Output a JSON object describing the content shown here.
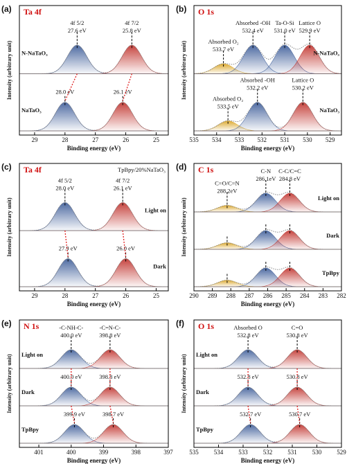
{
  "chart_data": [
    {
      "type": "xps",
      "panel": "(a)",
      "title": "Ta 4f",
      "xlabel": "Binding energy (eV)",
      "ylabel": "Intensity (arbitrary unit)",
      "xlim": [
        29.5,
        24.6
      ],
      "xticks": [
        29,
        28,
        27,
        26,
        25
      ],
      "name_side": "left",
      "link_color": "#e02020",
      "spectra": [
        {
          "name": "N-NaTaO₃",
          "peaks": [
            {
              "name": "4f 5/2",
              "value": 27.6,
              "label": "27.6 eV",
              "color": "#3b5b98"
            },
            {
              "name": "4f 7/2",
              "value": 25.8,
              "label": "25.8 eV",
              "color": "#c0302a"
            }
          ]
        },
        {
          "name": "NaTaO₃",
          "peaks": [
            {
              "value": 28.0,
              "label": "28.0 eV",
              "color": "#3b5b98"
            },
            {
              "value": 26.1,
              "label": "26.1 eV",
              "color": "#c0302a"
            }
          ]
        }
      ]
    },
    {
      "type": "xps",
      "panel": "(b)",
      "title": "O 1s",
      "xlabel": "Binding energy (eV)",
      "ylabel": "Intensity (arbitrary unit)",
      "xlim": [
        535,
        528.5
      ],
      "xticks": [
        535,
        534,
        533,
        532,
        531,
        530,
        529
      ],
      "name_side": "right",
      "spectra": [
        {
          "name": "N-NaTaO₃",
          "peaks": [
            {
              "name": "Absorbed O₂",
              "value": 533.7,
              "label": "533.7 eV",
              "color": "#d9a21f"
            },
            {
              "name": "Absorbed -OH",
              "value": 532.4,
              "label": "532.4 eV",
              "color": "#3b5b98"
            },
            {
              "name": "Ta-O-Si",
              "value": 531.0,
              "label": "531.0 eV",
              "color": "#3b5b98"
            },
            {
              "name": "Lattice O",
              "value": 529.9,
              "label": "529.9 eV",
              "color": "#c0302a"
            }
          ]
        },
        {
          "name": "NaTaO₃",
          "peaks": [
            {
              "name": "Absorbed O₂",
              "value": 533.5,
              "label": "533.5 eV",
              "color": "#d9a21f"
            },
            {
              "name": "Absorbed -OH",
              "value": 532.2,
              "label": "532.2 eV",
              "color": "#3b5b98"
            },
            {
              "name": "Lattice O",
              "value": 530.2,
              "label": "530.2 eV",
              "color": "#c0302a"
            }
          ]
        }
      ]
    },
    {
      "type": "xps",
      "panel": "(c)",
      "title": "Ta 4f",
      "subtitle": "TpBpy/20%NaTaO₃",
      "xlabel": "Binding energy (eV)",
      "ylabel": "Intensity (arbitrary unit)",
      "xlim": [
        29.5,
        24.6
      ],
      "xticks": [
        29,
        28,
        27,
        26,
        25
      ],
      "name_side": "right",
      "link_color": "#e02020",
      "spectra": [
        {
          "name": "Light on",
          "peaks": [
            {
              "name": "4f 5/2",
              "value": 28.0,
              "label": "28.0 eV",
              "color": "#3b5b98"
            },
            {
              "name": "4f 7/2",
              "value": 26.1,
              "label": "26.1 eV",
              "color": "#c0302a"
            }
          ]
        },
        {
          "name": "Dark",
          "peaks": [
            {
              "value": 27.9,
              "label": "27.9 eV",
              "color": "#3b5b98"
            },
            {
              "value": 26.0,
              "label": "26.0 eV",
              "color": "#c0302a"
            }
          ]
        }
      ]
    },
    {
      "type": "xps",
      "panel": "(d)",
      "title": "C 1s",
      "xlabel": "Binding energy (eV)",
      "ylabel": "Intensity (arbitrary unit)",
      "xlim": [
        290,
        282
      ],
      "xticks": [
        290,
        289,
        288,
        287,
        286,
        285,
        284,
        283,
        282
      ],
      "name_side": "right",
      "spectra": [
        {
          "name": "Light on",
          "peaks": [
            {
              "name": "C=O/C=N",
              "value": 288.2,
              "label": "288.2eV",
              "color": "#d9a21f"
            },
            {
              "name": "C-N",
              "value": 286.1,
              "label": "286.1eV",
              "color": "#3b5b98"
            },
            {
              "name": "C-C/C=C",
              "value": 284.8,
              "label": "284.8 eV",
              "color": "#c0302a"
            }
          ]
        },
        {
          "name": "Dark",
          "peaks": [
            {
              "value": 288.2,
              "color": "#d9a21f"
            },
            {
              "value": 286.1,
              "color": "#3b5b98"
            },
            {
              "value": 284.8,
              "color": "#c0302a"
            }
          ]
        },
        {
          "name": "TpBpy",
          "peaks": [
            {
              "value": 288.2,
              "color": "#d9a21f"
            },
            {
              "value": 286.1,
              "color": "#3b5b98"
            },
            {
              "value": 284.8,
              "color": "#c0302a"
            }
          ]
        }
      ]
    },
    {
      "type": "xps",
      "panel": "(e)",
      "title": "N 1s",
      "xlabel": "Binding energy (eV)",
      "ylabel": "Intensity (arbitrary unit)",
      "xlim": [
        401.6,
        397
      ],
      "xticks": [
        401,
        400,
        399,
        398,
        397
      ],
      "name_side": "left",
      "link_color": "#e02020",
      "spectra": [
        {
          "name": "Light on",
          "peaks": [
            {
              "name": "-C-NH-C-",
              "value": 400.0,
              "label": "400.0 eV",
              "color": "#3b5b98"
            },
            {
              "name": "-C=N-C-",
              "value": 398.8,
              "label": "398.8 eV",
              "color": "#c0302a"
            }
          ]
        },
        {
          "name": "Dark",
          "peaks": [
            {
              "value": 400.0,
              "label": "400.0 eV",
              "color": "#3b5b98"
            },
            {
              "value": 398.8,
              "label": "398.8 eV",
              "color": "#c0302a"
            }
          ]
        },
        {
          "name": "TpBpy",
          "peaks": [
            {
              "value": 399.9,
              "label": "399.9 eV",
              "color": "#3b5b98"
            },
            {
              "value": 398.7,
              "label": "398.7 eV",
              "color": "#c0302a"
            }
          ]
        }
      ]
    },
    {
      "type": "xps",
      "panel": "(f)",
      "title": "O 1s",
      "xlabel": "Binding energy (eV)",
      "ylabel": "Intensity (arbitrary unit)",
      "xlim": [
        535,
        529
      ],
      "xticks": [
        535,
        534,
        533,
        532,
        531,
        530,
        529
      ],
      "name_side": "left",
      "link_color": "#e02020",
      "spectra": [
        {
          "name": "Light on",
          "peaks": [
            {
              "name": "Absorbed O",
              "value": 532.8,
              "label": "532.8 eV",
              "color": "#3b5b98"
            },
            {
              "name": "C=O",
              "value": 530.8,
              "label": "530.8 eV",
              "color": "#c0302a"
            }
          ]
        },
        {
          "name": "Dark",
          "peaks": [
            {
              "value": 532.8,
              "label": "532.8 eV",
              "color": "#3b5b98"
            },
            {
              "value": 530.8,
              "label": "530.8 eV",
              "color": "#c0302a"
            }
          ]
        },
        {
          "name": "TpBpy",
          "peaks": [
            {
              "value": 532.7,
              "label": "532.7 eV",
              "color": "#3b5b98"
            },
            {
              "value": 530.7,
              "label": "530.7 eV",
              "color": "#c0302a"
            }
          ]
        }
      ]
    }
  ]
}
